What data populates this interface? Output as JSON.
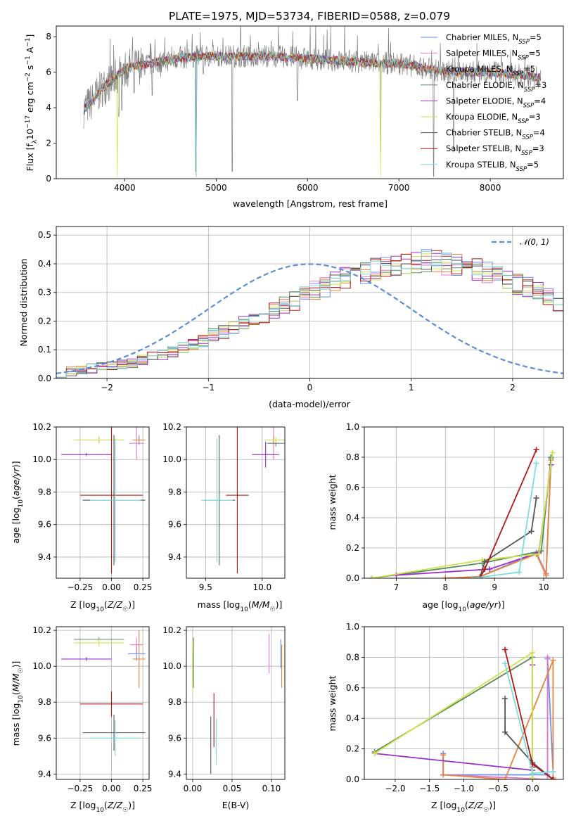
{
  "figure_title": "PLATE=1975, MJD=53734, FIBERID=0588, z=0.079",
  "colors": {
    "chabrier_miles": "#6b8ef0",
    "salpeter_miles": "#e07ac6",
    "kroupa_miles": "#e8843c",
    "chabrier_elodie": "#5a8a5a",
    "salpeter_elodie": "#9b30c8",
    "kroupa_elodie": "#cde34a",
    "chabrier_stelib": "#555555",
    "salpeter_stelib": "#b01818",
    "kroupa_stelib": "#7fdcdc",
    "data": "#808080",
    "gauss": "#5b8dd9",
    "grid": "#b0b0b0"
  },
  "chart_data": [
    {
      "type": "line",
      "id": "spectrum",
      "xlabel": "wavelength [Angstrom, rest frame]",
      "ylabel_parts": [
        "Flux [f",
        "λ",
        "10",
        "−17",
        " erg cm",
        "−2",
        " s",
        "−1",
        " A",
        "−1",
        "]"
      ],
      "xlim": [
        3250,
        8800
      ],
      "ylim": [
        0,
        8.6
      ],
      "xticks": [
        4000,
        5000,
        6000,
        7000,
        8000
      ],
      "yticks": [
        0,
        2,
        4,
        6,
        8
      ],
      "grid": false,
      "legend_position": "right",
      "legend": [
        {
          "name": "Chabrier MILES, N",
          "sub": "SSP",
          "tail": "=5",
          "color_key": "chabrier_miles"
        },
        {
          "name": "Salpeter MILES, N",
          "sub": "SSP",
          "tail": "=5",
          "color_key": "salpeter_miles"
        },
        {
          "name": "Kroupa MILES, N",
          "sub": "SSP",
          "tail": "=5",
          "color_key": "kroupa_miles"
        },
        {
          "name": "Chabrier ELODIE, N",
          "sub": "SSP",
          "tail": "=3",
          "color_key": "chabrier_elodie"
        },
        {
          "name": "Salpeter ELODIE, N",
          "sub": "SSP",
          "tail": "=4",
          "color_key": "salpeter_elodie"
        },
        {
          "name": "Kroupa ELODIE, N",
          "sub": "SSP",
          "tail": "=3",
          "color_key": "kroupa_elodie"
        },
        {
          "name": "Chabrier STELIB, N",
          "sub": "SSP",
          "tail": "=4",
          "color_key": "chabrier_stelib"
        },
        {
          "name": "Salpeter STELIB, N",
          "sub": "SSP",
          "tail": "=3",
          "color_key": "salpeter_stelib"
        },
        {
          "name": "Kroupa STELIB, N",
          "sub": "SSP",
          "tail": "=5",
          "color_key": "kroupa_stelib"
        }
      ],
      "continuum": [
        [
          3550,
          3.9
        ],
        [
          3650,
          4.4
        ],
        [
          3750,
          5.1
        ],
        [
          3850,
          5.5
        ],
        [
          3950,
          6.0
        ],
        [
          4050,
          6.3
        ],
        [
          4200,
          6.4
        ],
        [
          4400,
          6.6
        ],
        [
          4600,
          6.8
        ],
        [
          4800,
          6.9
        ],
        [
          5000,
          6.9
        ],
        [
          5300,
          6.9
        ],
        [
          5600,
          6.9
        ],
        [
          5900,
          6.8
        ],
        [
          6200,
          6.7
        ],
        [
          6500,
          6.6
        ],
        [
          6800,
          6.5
        ],
        [
          7000,
          6.5
        ],
        [
          7200,
          6.3
        ],
        [
          7400,
          6.1
        ],
        [
          7600,
          6.0
        ],
        [
          7800,
          6.0
        ],
        [
          8000,
          6.0
        ],
        [
          8200,
          5.9
        ],
        [
          8400,
          5.8
        ],
        [
          8550,
          5.7
        ]
      ]
    },
    {
      "type": "bar",
      "id": "residuals",
      "xlabel": "(data-model)/error",
      "ylabel": "Normed distribution",
      "xlim": [
        -2.5,
        2.5
      ],
      "ylim": [
        0,
        0.53
      ],
      "xticks": [
        -2,
        -1,
        0,
        1,
        2
      ],
      "yticks": [
        0.0,
        0.1,
        0.2,
        0.3,
        0.4,
        0.5
      ],
      "grid": true,
      "legend_position": "top-right",
      "legend_gauss": "𝒩(0, 1)",
      "bin_edges_start": -2.5,
      "bin_width": 0.1,
      "reference_values": [
        0.02,
        0.025,
        0.03,
        0.035,
        0.04,
        0.045,
        0.05,
        0.055,
        0.065,
        0.075,
        0.085,
        0.095,
        0.105,
        0.12,
        0.13,
        0.15,
        0.16,
        0.18,
        0.19,
        0.21,
        0.22,
        0.24,
        0.26,
        0.27,
        0.29,
        0.31,
        0.32,
        0.34,
        0.35,
        0.36,
        0.37,
        0.38,
        0.39,
        0.39,
        0.4,
        0.4,
        0.41,
        0.41,
        0.4,
        0.4,
        0.39,
        0.38,
        0.37,
        0.36,
        0.34,
        0.33,
        0.32,
        0.3,
        0.28,
        0.26,
        0.25,
        0.23,
        0.22,
        0.2,
        0.19,
        0.17,
        0.15,
        0.14,
        0.12,
        0.11,
        0.1,
        0.09,
        0.08,
        0.07,
        0.06,
        0.05,
        0.045,
        0.04,
        0.035,
        0.03,
        0.025,
        0.02,
        0.018,
        0.016,
        0.015,
        0.013,
        0.012,
        0.011,
        0.01,
        0.01
      ]
    },
    {
      "type": "scatter",
      "id": "age_vs_Z",
      "xlabel": "Z [log10(Z/Z☉)]",
      "ylabel": "age  [log10(age/yr)]",
      "xlim": [
        -0.44,
        0.3
      ],
      "ylim": [
        9.27,
        10.2
      ],
      "xticks": [
        -0.25,
        0.0,
        0.25
      ],
      "xticklabels": [
        "−0.25",
        "0.00",
        "0.25"
      ],
      "yticks": [
        9.4,
        9.6,
        9.8,
        10.0,
        10.2
      ],
      "grid": true,
      "points": [
        {
          "key": "chabrier_miles",
          "x": 0.22,
          "xerr": 0.05,
          "y": 10.12,
          "yerr": 0.03
        },
        {
          "key": "salpeter_miles",
          "x": 0.2,
          "xerr": 0.06,
          "y": 10.1,
          "yerr": 0.1
        },
        {
          "key": "kroupa_miles",
          "x": 0.22,
          "xerr": 0.05,
          "y": 10.12,
          "yerr": 0.02
        },
        {
          "key": "chabrier_elodie",
          "x": -0.1,
          "xerr": 0.2,
          "y": 10.12,
          "yerr": 0.02
        },
        {
          "key": "salpeter_elodie",
          "x": -0.2,
          "xerr": 0.2,
          "y": 10.03,
          "yerr": 0.01
        },
        {
          "key": "kroupa_elodie",
          "x": -0.1,
          "xerr": 0.2,
          "y": 10.12,
          "yerr": 0.02
        },
        {
          "key": "chabrier_stelib",
          "x": 0.02,
          "xerr": 0.25,
          "y": 9.75,
          "yerr": 0.4
        },
        {
          "key": "salpeter_stelib",
          "x": 0.0,
          "xerr": 0.25,
          "y": 9.78,
          "yerr": 0.48
        },
        {
          "key": "kroupa_stelib",
          "x": 0.03,
          "xerr": 0.2,
          "y": 9.75,
          "yerr": 0.38
        }
      ]
    },
    {
      "type": "scatter",
      "id": "age_vs_mass",
      "xlabel": "mass [log10(M/M☉)]",
      "ylabel": "",
      "xlim": [
        9.33,
        10.2
      ],
      "ylim": [
        9.27,
        10.2
      ],
      "xticks": [
        9.5,
        10.0
      ],
      "yticks": [
        9.4,
        9.6,
        9.8,
        10.0,
        10.2
      ],
      "grid": true,
      "points": [
        {
          "key": "chabrier_miles",
          "x": 10.1,
          "xerr": 0.05,
          "y": 10.12,
          "yerr": 0.03
        },
        {
          "key": "salpeter_miles",
          "x": 10.1,
          "xerr": 0.05,
          "y": 10.1,
          "yerr": 0.1
        },
        {
          "key": "kroupa_miles",
          "x": 10.1,
          "xerr": 0.05,
          "y": 10.12,
          "yerr": 0.02
        },
        {
          "key": "chabrier_elodie",
          "x": 10.12,
          "xerr": 0.08,
          "y": 10.1,
          "yerr": 0.02
        },
        {
          "key": "salpeter_elodie",
          "x": 10.03,
          "xerr": 0.12,
          "y": 10.03,
          "yerr": 0.08
        },
        {
          "key": "kroupa_elodie",
          "x": 10.12,
          "xerr": 0.1,
          "y": 10.12,
          "yerr": 0.02
        },
        {
          "key": "chabrier_stelib",
          "x": 9.62,
          "xerr": 0.14,
          "y": 9.75,
          "yerr": 0.4
        },
        {
          "key": "salpeter_stelib",
          "x": 9.78,
          "xerr": 0.1,
          "y": 9.78,
          "yerr": 0.48
        },
        {
          "key": "kroupa_stelib",
          "x": 9.6,
          "xerr": 0.14,
          "y": 9.75,
          "yerr": 0.38
        }
      ]
    },
    {
      "type": "line",
      "id": "weight_vs_age",
      "xlabel": "age  [log10(age/yr)]",
      "ylabel": "mass weight",
      "xlim": [
        6.35,
        10.4
      ],
      "ylim": [
        0.0,
        1.0
      ],
      "xticks": [
        7,
        8,
        9,
        10
      ],
      "yticks": [
        0.0,
        0.2,
        0.4,
        0.6,
        0.8,
        1.0
      ],
      "grid": true,
      "series": [
        {
          "key": "chabrier_miles",
          "x": [
            8.0,
            8.7,
            9.85,
            10.05,
            10.15
          ],
          "y": [
            0.0,
            0.01,
            0.17,
            0.03,
            0.79
          ]
        },
        {
          "key": "salpeter_miles",
          "x": [
            8.0,
            8.7,
            9.85,
            10.05,
            10.15
          ],
          "y": [
            0.0,
            0.01,
            0.16,
            0.03,
            0.8
          ]
        },
        {
          "key": "kroupa_miles",
          "x": [
            8.0,
            8.7,
            9.85,
            10.05,
            10.15
          ],
          "y": [
            0.0,
            0.01,
            0.16,
            0.02,
            0.78
          ]
        },
        {
          "key": "chabrier_elodie",
          "x": [
            6.5,
            8.75,
            9.95,
            10.15
          ],
          "y": [
            0.0,
            0.1,
            0.18,
            0.8
          ]
        },
        {
          "key": "salpeter_elodie",
          "x": [
            7.0,
            8.9,
            9.9,
            10.15
          ],
          "y": [
            0.02,
            0.06,
            0.17,
            0.75
          ]
        },
        {
          "key": "kroupa_elodie",
          "x": [
            6.5,
            8.75,
            9.9,
            10.18
          ],
          "y": [
            0.0,
            0.12,
            0.16,
            0.83
          ]
        },
        {
          "key": "chabrier_stelib",
          "x": [
            8.7,
            8.8,
            9.75,
            9.85
          ],
          "y": [
            0.0,
            0.11,
            0.31,
            0.53
          ]
        },
        {
          "key": "salpeter_stelib",
          "x": [
            8.7,
            8.8,
            9.85
          ],
          "y": [
            0.0,
            0.06,
            0.85
          ]
        },
        {
          "key": "kroupa_stelib",
          "x": [
            8.55,
            9.5,
            9.85
          ],
          "y": [
            0.0,
            0.04,
            0.76
          ]
        }
      ]
    },
    {
      "type": "scatter",
      "id": "mass_vs_Z",
      "xlabel": "Z [log10(Z/Z☉)]",
      "ylabel": "mass [log10(M/M☉)]",
      "xlim": [
        -0.44,
        0.3
      ],
      "ylim": [
        9.37,
        10.22
      ],
      "xticks": [
        -0.25,
        0.0,
        0.25
      ],
      "xticklabels": [
        "−0.25",
        "0.00",
        "0.25"
      ],
      "yticks": [
        9.4,
        9.6,
        9.8,
        10.0,
        10.2
      ],
      "grid": true,
      "points": [
        {
          "key": "chabrier_miles",
          "x": 0.2,
          "xerr": 0.07,
          "y": 10.07,
          "yerr": 0.04
        },
        {
          "key": "salpeter_miles",
          "x": 0.2,
          "xerr": 0.05,
          "y": 10.12,
          "yerr": 0.04
        },
        {
          "key": "kroupa_miles",
          "x": 0.22,
          "xerr": 0.05,
          "y": 10.04,
          "yerr": 0.16
        },
        {
          "key": "chabrier_elodie",
          "x": -0.1,
          "xerr": 0.2,
          "y": 10.15,
          "yerr": 0.01
        },
        {
          "key": "salpeter_elodie",
          "x": -0.2,
          "xerr": 0.2,
          "y": 10.04,
          "yerr": 0.01
        },
        {
          "key": "kroupa_elodie",
          "x": -0.1,
          "xerr": 0.2,
          "y": 10.13,
          "yerr": 0.02
        },
        {
          "key": "chabrier_stelib",
          "x": 0.02,
          "xerr": 0.25,
          "y": 9.63,
          "yerr": 0.1
        },
        {
          "key": "salpeter_stelib",
          "x": 0.0,
          "xerr": 0.25,
          "y": 9.79,
          "yerr": 0.07
        },
        {
          "key": "kroupa_stelib",
          "x": 0.03,
          "xerr": 0.2,
          "y": 9.6,
          "yerr": 0.1
        }
      ]
    },
    {
      "type": "scatter",
      "id": "mass_vs_EBV",
      "xlabel": "E(B-V)",
      "ylabel": "",
      "xlim": [
        -0.008,
        0.117
      ],
      "ylim": [
        9.37,
        10.22
      ],
      "xticks": [
        0.0,
        0.05,
        0.1
      ],
      "xticklabels": [
        "0.00",
        "0.05",
        "0.10"
      ],
      "yticks": [
        9.4,
        9.6,
        9.8,
        10.0,
        10.2
      ],
      "grid": true,
      "points": [
        {
          "key": "chabrier_miles",
          "x": 0.112,
          "y": 10.07,
          "yerr": 0.08
        },
        {
          "key": "salpeter_miles",
          "x": 0.097,
          "y": 10.07,
          "yerr": 0.11
        },
        {
          "key": "kroupa_miles",
          "x": 0.113,
          "y": 10.0,
          "yerr": 0.12
        },
        {
          "key": "chabrier_elodie",
          "x": 0.001,
          "y": 10.02,
          "yerr": 0.14
        },
        {
          "key": "salpeter_elodie",
          "x": 0.0,
          "y": 10.0,
          "yerr": 0.1
        },
        {
          "key": "kroupa_elodie",
          "x": 0.0,
          "y": 10.0,
          "yerr": 0.14
        },
        {
          "key": "chabrier_stelib",
          "x": 0.023,
          "y": 9.56,
          "yerr": 0.16
        },
        {
          "key": "salpeter_stelib",
          "x": 0.027,
          "y": 9.7,
          "yerr": 0.15
        },
        {
          "key": "kroupa_stelib",
          "x": 0.03,
          "y": 9.58,
          "yerr": 0.13
        }
      ]
    },
    {
      "type": "line",
      "id": "weight_vs_Z",
      "xlabel": "Z [log10(Z/Z☉)]",
      "ylabel": "mass weight",
      "xlim": [
        -2.45,
        0.45
      ],
      "ylim": [
        0.0,
        1.0
      ],
      "xticks": [
        -2.0,
        -1.5,
        -1.0,
        -0.5,
        0.0
      ],
      "xticklabels": [
        "−2.0",
        "−1.5",
        "−1.0",
        "−0.5",
        "0.0"
      ],
      "yticks": [
        0.0,
        0.2,
        0.4,
        0.6,
        0.8,
        1.0
      ],
      "grid": true,
      "series": [
        {
          "key": "chabrier_miles",
          "x": [
            -1.3,
            -1.3,
            0.22,
            0.22,
            0.3
          ],
          "y": [
            0.17,
            0.03,
            0.03,
            0.79,
            0.05
          ]
        },
        {
          "key": "salpeter_miles",
          "x": [
            -1.3,
            -1.3,
            0.22,
            0.22
          ],
          "y": [
            0.16,
            0.03,
            0.0,
            0.8
          ]
        },
        {
          "key": "kroupa_miles",
          "x": [
            -1.3,
            -1.3,
            -0.4,
            0.3,
            0.3
          ],
          "y": [
            0.16,
            0.03,
            0.0,
            0.78,
            0.01
          ]
        },
        {
          "key": "chabrier_elodie",
          "x": [
            -2.3,
            0.0,
            0.0
          ],
          "y": [
            0.18,
            0.8,
            0.1
          ]
        },
        {
          "key": "salpeter_elodie",
          "x": [
            -2.3,
            0.0,
            0.0,
            0.0
          ],
          "y": [
            0.17,
            0.06,
            0.75,
            0.08
          ]
        },
        {
          "key": "kroupa_elodie",
          "x": [
            -2.3,
            0.0,
            0.0
          ],
          "y": [
            0.17,
            0.83,
            0.01
          ]
        },
        {
          "key": "chabrier_stelib",
          "x": [
            -0.4,
            -0.4,
            0.0,
            0.3
          ],
          "y": [
            0.53,
            0.31,
            0.11,
            0.0
          ]
        },
        {
          "key": "salpeter_stelib",
          "x": [
            -0.4,
            0.0,
            0.3
          ],
          "y": [
            0.85,
            0.1,
            0.0
          ]
        },
        {
          "key": "kroupa_stelib",
          "x": [
            -0.4,
            0.0,
            0.3
          ],
          "y": [
            0.76,
            0.04,
            0.05
          ]
        }
      ]
    }
  ]
}
